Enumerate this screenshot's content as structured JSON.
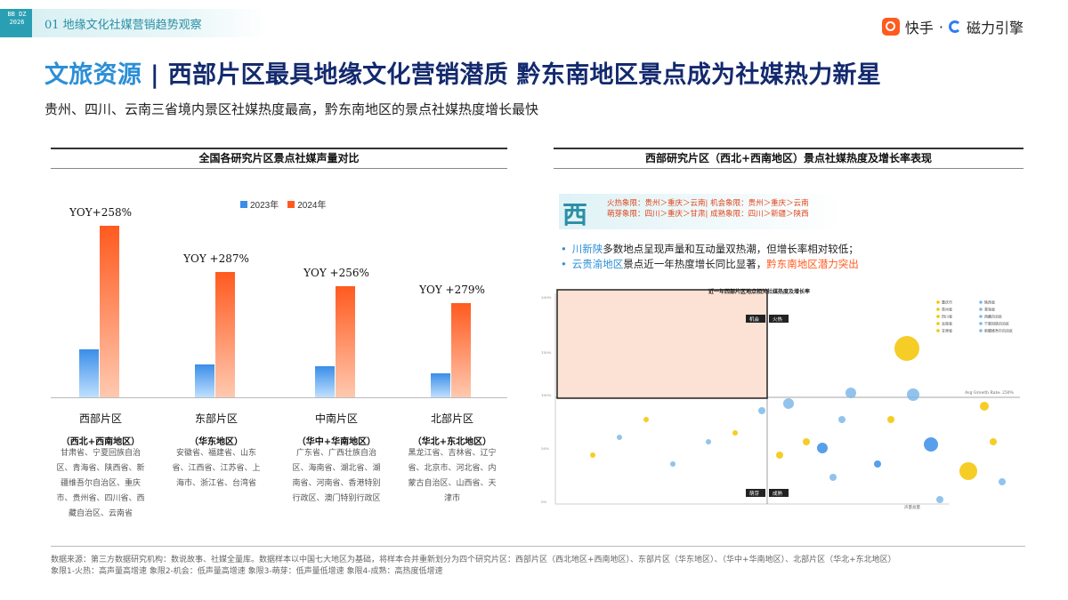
{
  "header": {
    "section": "01 地缘文化社媒营销趋势观察",
    "logo_text": "BB DZ 2026",
    "brand_ks": "快手",
    "brand_sep": "·",
    "brand_cl": "磁力引擎"
  },
  "title": {
    "prefix": "文旅资源",
    "sep": " | ",
    "main": "西部片区最具地缘文化营销潜质 黔东南地区景点成为社媒热力新星"
  },
  "subtitle": "贵州、四川、云南三省境内景区社媒热度最高，黔东南地区的景点社媒热度增长最快",
  "left_panel": {
    "heading": "全国各研究片区景点社媒声量对比",
    "legend_2023": "2023年",
    "legend_2024": "2024年"
  },
  "chart_data": {
    "type": "bar",
    "categories": [
      "西部片区",
      "东部片区",
      "中南片区",
      "北部片区"
    ],
    "series": [
      {
        "name": "2023年",
        "values": [
          28,
          19,
          18,
          14
        ]
      },
      {
        "name": "2024年",
        "values": [
          100,
          73,
          65,
          55
        ]
      }
    ],
    "yoy_labels": [
      "YOY+258%",
      "YOY +287%",
      "YOY +256%",
      "YOY +279%"
    ],
    "colors": {
      "2023年": "#3a8ee8",
      "2024年": "#ff5a1f"
    }
  },
  "regions": [
    {
      "name": "西部片区",
      "sub": "（西北+西南地区）",
      "provinces": "甘肃省、宁夏回族自治区、青海省、陕西省、新疆维吾尔自治区、重庆市、贵州省、四川省、西藏自治区、云南省"
    },
    {
      "name": "东部片区",
      "sub": "（华东地区）",
      "provinces": "安徽省、福建省、山东省、江西省、江苏省、上海市、浙江省、台湾省"
    },
    {
      "name": "中南片区",
      "sub": "（华中+华南地区）",
      "provinces": "广东省、广西壮族自治区、海南省、湖北省、湖南省、河南省、香港特别行政区、澳门特别行政区"
    },
    {
      "name": "北部片区",
      "sub": "（华北+东北地区）",
      "provinces": "黑龙江省、吉林省、辽宁省、北京市、河北省、内蒙古自治区、山西省、天津市"
    }
  ],
  "right_panel": {
    "heading": "西部研究片区（西北+西南地区）景点社媒热度及增长率表现",
    "west_char": "西",
    "line1": "火热象限：贵州＞重庆＞云南| 机会象限：贵州＞重庆＞云南",
    "line2": "萌芽象限：四川＞重庆＞甘肃| 成熟象限：四川＞新疆＞陕西",
    "bullet1_a": "川新陕",
    "bullet1_b": "多数地点呈现声量和互动量双热潮，但增长率相对较低；",
    "bullet2_a": "云贵渝地区",
    "bullet2_b": "景点近一年热度增长同比显著，",
    "bullet2_c": "黔东南地区潜力突出",
    "scatter_title": "近一年西部片区地点相关社媒热度及增长率",
    "quad_opportunity": "机会",
    "quad_hot": "火热",
    "quad_sprout": "萌芽",
    "quad_mature": "成熟",
    "avg_growth": "Avg Growth Rate: 250%",
    "y_ticks": [
      "200%",
      "150%",
      "100%",
      "50%",
      "0%"
    ],
    "x_label": "声量总量",
    "legend": [
      "重庆市",
      "贵州省",
      "四川省",
      "云南省",
      "甘肃省",
      "陕西省",
      "青海省",
      "西藏自治区",
      "宁夏回族自治区",
      "新疆维吾尔自治区"
    ]
  },
  "footer": {
    "line1": "数据来源：第三方数据研究机构：数说故事、社媒全量库。数据样本以中国七大地区为基础，将样本合并重新划分为四个研究片区：西部片区（西北地区+西南地区）、东部片区（华东地区）、（华中+华南地区）、北部片区（华北+东北地区）",
    "line2": "象限1-火热：高声量高增速  象限2-机会：低声量高增速  象限3-萌芽：低声量低增速  象限4-成熟：高热度低增速"
  }
}
